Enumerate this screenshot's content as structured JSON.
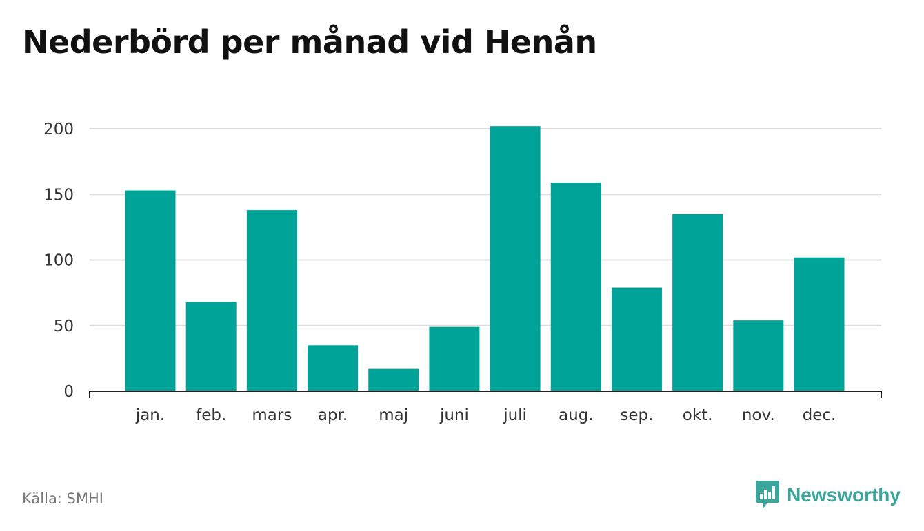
{
  "title": "Nederbörd per månad vid Henån",
  "source": "Källa: SMHI",
  "brand": {
    "name": "Newsworthy",
    "icon": "newsworthy-logo-icon",
    "color": "#3aa69b"
  },
  "chart_data": {
    "type": "bar",
    "title": "Nederbörd per månad vid Henån",
    "xlabel": "",
    "ylabel": "",
    "categories": [
      "jan.",
      "feb.",
      "mars",
      "apr.",
      "maj",
      "juni",
      "juli",
      "aug.",
      "sep.",
      "okt.",
      "nov.",
      "dec."
    ],
    "values": [
      153,
      68,
      138,
      35,
      17,
      49,
      202,
      159,
      79,
      135,
      54,
      102
    ],
    "ylim": [
      0,
      200
    ],
    "yticks": [
      0,
      50,
      100,
      150,
      200
    ],
    "grid": true,
    "bar_color": "#00a397",
    "grid_color": "#dddddd",
    "axis_color": "#222222"
  }
}
